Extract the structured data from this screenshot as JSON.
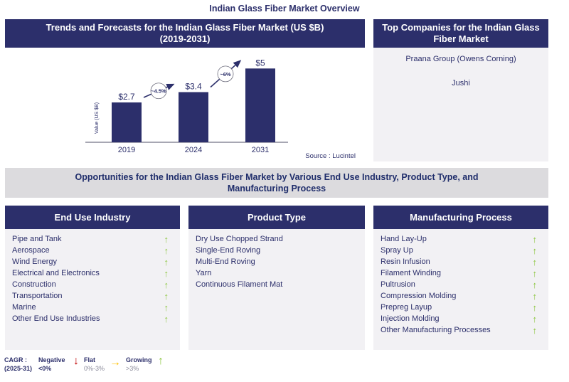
{
  "page_title": "Indian Glass Fiber Market Overview",
  "chart_panel": {
    "title_line1": "Trends and Forecasts for the Indian Glass Fiber Market (US $B)",
    "title_line2": "(2019-2031)",
    "source": "Source : Lucintel"
  },
  "chart_data": {
    "type": "bar",
    "title": "Trends and Forecasts for the Indian Glass Fiber Market (US $B) (2019-2031)",
    "categories": [
      "2019",
      "2024",
      "2031"
    ],
    "values": [
      2.7,
      3.4,
      5
    ],
    "data_labels": [
      "$2.7",
      "$3.4",
      "$5"
    ],
    "xlabel": "",
    "ylabel": "Value (US $B)",
    "ylim": [
      0,
      5.4
    ],
    "grid": false,
    "cagr_annotations": [
      {
        "from": "2019",
        "to": "2024",
        "label": "~4.5%"
      },
      {
        "from": "2024",
        "to": "2031",
        "label": "~6%"
      }
    ],
    "bar_color": "#2c2f6b"
  },
  "companies": {
    "title_line1": "Top Companies for the Indian Glass",
    "title_line2": "Fiber Market",
    "items": [
      "Praana Group (Owens Corning)",
      "Jushi"
    ]
  },
  "opportunities": {
    "line1": "Opportunities for the Indian Glass Fiber Market by Various End Use Industry, Product Type, and",
    "line2": "Manufacturing Process"
  },
  "segments": {
    "end_use": {
      "title": "End Use Industry",
      "items": [
        {
          "label": "Pipe and Tank",
          "trend": "growing"
        },
        {
          "label": "Aerospace",
          "trend": "growing"
        },
        {
          "label": "Wind Energy",
          "trend": "growing"
        },
        {
          "label": "Electrical and Electronics",
          "trend": "growing"
        },
        {
          "label": "Construction",
          "trend": "growing"
        },
        {
          "label": "Transportation",
          "trend": "growing"
        },
        {
          "label": "Marine",
          "trend": "growing"
        },
        {
          "label": "Other End Use Industries",
          "trend": "growing"
        }
      ]
    },
    "product_type": {
      "title": "Product Type",
      "items": [
        {
          "label": "Dry Use Chopped Strand"
        },
        {
          "label": "Single-End Roving"
        },
        {
          "label": "Multi-End Roving"
        },
        {
          "label": "Yarn"
        },
        {
          "label": "Continuous Filament Mat"
        }
      ]
    },
    "manufacturing": {
      "title": "Manufacturing Process",
      "items": [
        {
          "label": "Hand Lay-Up",
          "trend": "growing"
        },
        {
          "label": "Spray Up",
          "trend": "growing"
        },
        {
          "label": "Resin Infusion",
          "trend": "growing"
        },
        {
          "label": "Filament Winding",
          "trend": "growing"
        },
        {
          "label": "Pultrusion",
          "trend": "growing"
        },
        {
          "label": "Compression Molding",
          "trend": "growing"
        },
        {
          "label": "Prepreg Layup",
          "trend": "growing"
        },
        {
          "label": "Injection Molding",
          "trend": "growing"
        },
        {
          "label": "Other Manufacturing Processes",
          "trend": "growing"
        }
      ]
    }
  },
  "legend": {
    "cagr_label": "CAGR :",
    "cagr_period": "(2025-31)",
    "negative": {
      "label": "Negative",
      "range": "<0%",
      "icon": "down-arrow-icon",
      "color": "#c00000"
    },
    "flat": {
      "label": "Flat",
      "range": "0%-3%",
      "icon": "right-arrow-icon",
      "color": "#ffc000"
    },
    "growing": {
      "label": "Growing",
      "range": ">3%",
      "icon": "up-arrow-icon",
      "color": "#8cc63f"
    }
  }
}
